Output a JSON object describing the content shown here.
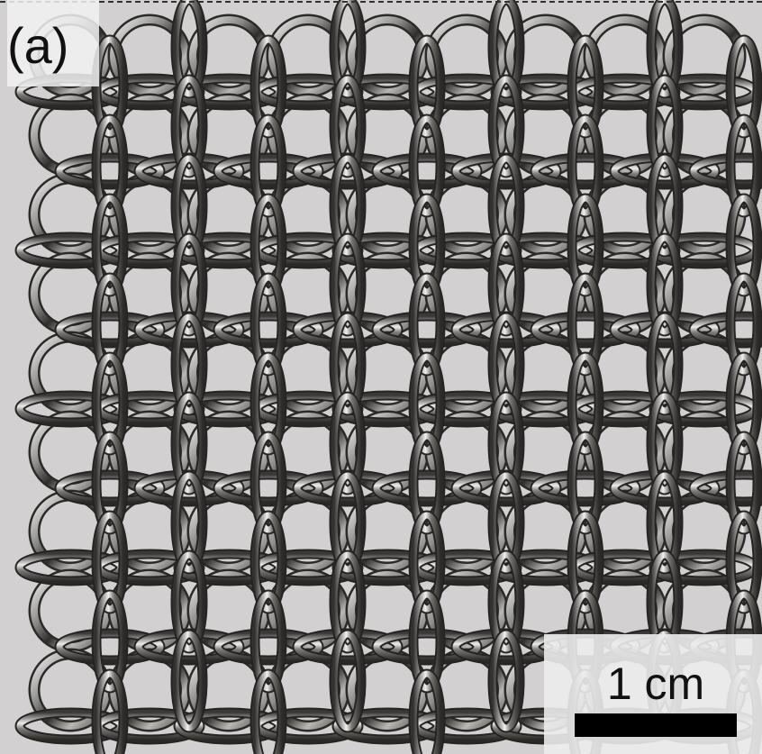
{
  "label": "(a)",
  "scale_bar": "1 cm"
}
